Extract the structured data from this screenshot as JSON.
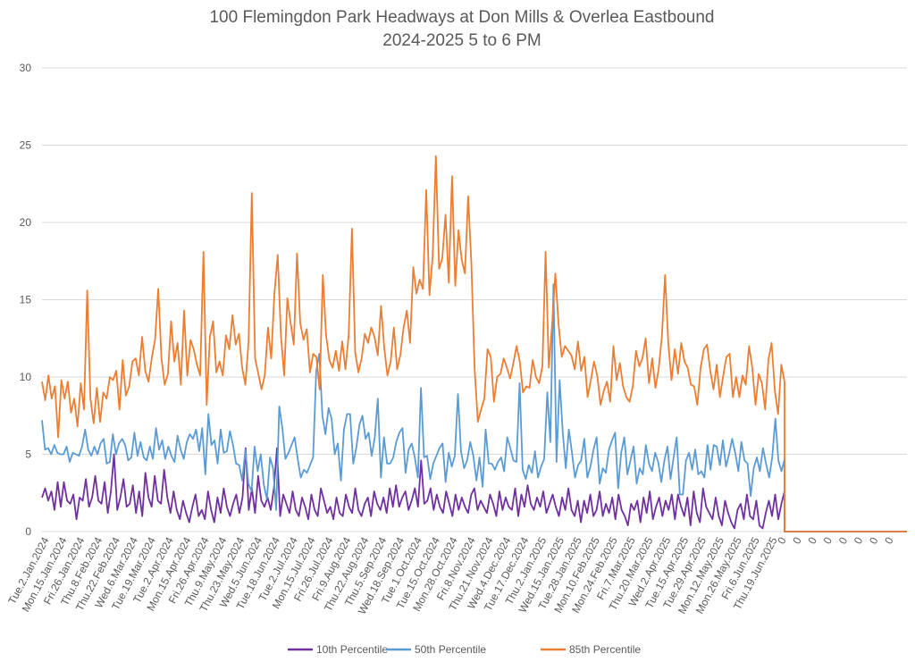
{
  "chart_data": {
    "type": "line",
    "title": [
      "100 Flemingdon Park Headways at Don Mills & Overlea Eastbound",
      "2024-2025 5 to 6 PM"
    ],
    "ylim": [
      0,
      30
    ],
    "yticks": [
      "0",
      "5",
      "10",
      "15",
      "20",
      "25",
      "30"
    ],
    "grid": "horizontal",
    "legend_position": "bottom",
    "x_labels": [
      "Tue.2.Jan.2024",
      "Mon.15.Jan.2024",
      "Fri.26.Jan.2024",
      "Thu.8.Feb.2024",
      "Thu.22.Feb.2024",
      "Wed.6.Mar.2024",
      "Tue.19.Mar.2024",
      "Tue.2.Apr.2024",
      "Mon.15.Apr.2024",
      "Fri.26.Apr.2024",
      "Thu.9.May.2024",
      "Thu.23.May.2024",
      "Wed.5.Jun.2024",
      "Tue.18.Jun.2024",
      "Tue.2.Jul.2024",
      "Mon.15.Jul.2024",
      "Fri.26.Jul.2024",
      "Fri.9.Aug.2024",
      "Thu.22.Aug.2024",
      "Thu.5.Sep.2024",
      "Wed.18.Sep.2024",
      "Tue.1.Oct.2024",
      "Tue.15.Oct.2024",
      "Mon.28.Oct.2024",
      "Fri.8.Nov.2024",
      "Thu.21.Nov.2024",
      "Wed.4.Dec.2024",
      "Tue.17.Dec.2024",
      "Thu.2.Jan.2025",
      "Wed.15.Jan.2025",
      "Tue.28.Jan.2025",
      "Mon.10.Feb.2025",
      "Mon.24.Feb.2025",
      "Fri.7.Mar.2025",
      "Thu.20.Mar.2025",
      "Wed.2.Apr.2025",
      "Tue.15.Apr.2025",
      "Tue.29.Apr.2025",
      "Mon.12.May.2025",
      "Mon.26.May.2025",
      "Fri.6.Jun.2025",
      "Thu.19.Jun.2025",
      "0",
      "0",
      "0",
      "0",
      "0",
      "0",
      "0",
      "0"
    ],
    "series": [
      {
        "name": "10th Percentile",
        "color": "#7030a0",
        "values": [
          2.2,
          2.8,
          2.0,
          2.6,
          1.4,
          3.2,
          1.6,
          3.2,
          2.0,
          1.8,
          2.4,
          0.8,
          2.2,
          2.0,
          3.4,
          1.6,
          2.2,
          3.6,
          2.0,
          1.8,
          3.2,
          1.2,
          2.6,
          5.0,
          1.4,
          2.2,
          3.4,
          1.6,
          1.8,
          3.0,
          1.2,
          2.6,
          1.0,
          3.8,
          2.2,
          1.6,
          3.6,
          2.0,
          1.8,
          4.0,
          2.2,
          1.2,
          2.6,
          1.4,
          0.8,
          2.0,
          1.2,
          0.6,
          1.6,
          2.4,
          1.0,
          1.4,
          0.8,
          2.6,
          1.4,
          0.6,
          2.2,
          1.2,
          2.8,
          1.6,
          1.0,
          1.8,
          2.4,
          1.2,
          2.2,
          5.4,
          1.4,
          2.8,
          1.2,
          3.6,
          2.0,
          1.6,
          2.2,
          1.4,
          2.8,
          5.4,
          1.0,
          2.4,
          1.8,
          1.2,
          2.6,
          1.4,
          1.0,
          2.2,
          1.6,
          0.8,
          2.4,
          1.4,
          1.0,
          2.8,
          2.0,
          1.2,
          1.6,
          0.8,
          2.2,
          1.2,
          1.0,
          2.4,
          1.6,
          1.2,
          2.8,
          1.4,
          1.0,
          1.8,
          2.2,
          1.0,
          2.6,
          1.8,
          1.4,
          2.2,
          1.2,
          2.8,
          1.6,
          3.0,
          1.6,
          2.2,
          2.6,
          1.4,
          2.0,
          2.8,
          1.6,
          4.6,
          1.8,
          2.0,
          2.8,
          1.4,
          2.4,
          1.6,
          1.2,
          2.6,
          1.8,
          1.0,
          2.4,
          1.4,
          2.2,
          1.6,
          1.2,
          2.4,
          2.8,
          1.4,
          2.0,
          1.6,
          1.2,
          2.4,
          1.8,
          1.0,
          2.6,
          1.4,
          2.2,
          1.6,
          1.4,
          2.8,
          1.0,
          2.4,
          1.6,
          3.0,
          1.8,
          1.4,
          2.2,
          1.6,
          2.6,
          1.2,
          1.8,
          2.4,
          1.6,
          1.0,
          2.2,
          1.4,
          2.8,
          1.4,
          1.0,
          2.0,
          0.6,
          2.0,
          1.2,
          2.4,
          1.0,
          1.4,
          2.6,
          1.0,
          1.8,
          1.2,
          2.2,
          0.8,
          2.4,
          1.4,
          1.0,
          0.4,
          1.8,
          1.4,
          2.0,
          0.6,
          2.2,
          1.2,
          2.6,
          0.8,
          1.6,
          2.2,
          1.0,
          2.0,
          1.4,
          2.4,
          0.8,
          2.4,
          1.6,
          1.0,
          2.2,
          0.4,
          2.6,
          1.2,
          0.6,
          2.8,
          1.6,
          1.2,
          0.8,
          2.2,
          1.0,
          0.4,
          2.0,
          1.2,
          0.6,
          0.2,
          1.4,
          1.8,
          0.8,
          2.4,
          1.0,
          0.8,
          2.0,
          0.4,
          0.2,
          1.2,
          2.0,
          1.0,
          2.4,
          0.8,
          1.8,
          2.6
        ]
      },
      {
        "name": "50th Percentile",
        "color": "#5b9bd5",
        "values": [
          7.2,
          5.3,
          5.4,
          5.0,
          5.6,
          5.1,
          5.0,
          5.0,
          5.5,
          4.5,
          5.1,
          5.0,
          4.9,
          5.5,
          6.6,
          5.3,
          4.9,
          5.5,
          5.0,
          5.7,
          6.0,
          4.4,
          4.5,
          6.3,
          5.0,
          5.7,
          6.0,
          5.6,
          4.6,
          4.8,
          6.4,
          4.9,
          5.8,
          4.8,
          4.6,
          5.5,
          4.7,
          6.7,
          5.3,
          5.9,
          4.7,
          5.5,
          4.9,
          4.5,
          6.2,
          5.3,
          4.7,
          5.8,
          6.3,
          6.0,
          6.6,
          5.2,
          6.7,
          3.7,
          7.6,
          5.6,
          5.9,
          4.4,
          6.6,
          5.1,
          5.2,
          6.5,
          5.6,
          4.4,
          4.3,
          3.3,
          5.3,
          3.1,
          2.6,
          5.5,
          3.9,
          5.0,
          3.0,
          2.1,
          4.8,
          4.1,
          1.4,
          8.1,
          6.7,
          4.7,
          5.1,
          5.6,
          6.1,
          4.7,
          3.5,
          4.0,
          3.8,
          4.3,
          4.8,
          10.4,
          11.5,
          7.5,
          6.3,
          8.0,
          7.3,
          5.0,
          5.7,
          3.3,
          6.6,
          7.6,
          7.6,
          4.4,
          5.4,
          6.9,
          7.5,
          6.0,
          6.4,
          4.9,
          6.1,
          8.6,
          3.5,
          6.1,
          4.4,
          4.4,
          4.8,
          5.8,
          6.4,
          6.7,
          3.8,
          5.3,
          5.7,
          4.8,
          3.5,
          9.3,
          4.8,
          4.9,
          3.4,
          4.4,
          4.9,
          5.4,
          5.7,
          3.2,
          5.1,
          4.2,
          4.9,
          8.9,
          5.2,
          4.1,
          4.6,
          5.8,
          4.9,
          3.3,
          4.8,
          2.9,
          6.6,
          4.4,
          4.4,
          4.0,
          4.5,
          4.8,
          3.9,
          6.1,
          5.4,
          4.6,
          4.5,
          9.6,
          4.0,
          3.4,
          4.3,
          3.8,
          5.2,
          3.5,
          4.2,
          4.7,
          9.0,
          5.8,
          16.0,
          4.5,
          9.8,
          6.5,
          4.1,
          6.6,
          5.1,
          3.5,
          4.3,
          4.6,
          6.0,
          3.5,
          4.2,
          5.3,
          6.1,
          3.1,
          4.1,
          3.8,
          5.3,
          5.9,
          6.4,
          2.8,
          5.1,
          6.1,
          3.7,
          4.6,
          5.5,
          3.1,
          4.1,
          3.7,
          5.6,
          4.4,
          3.9,
          5.1,
          4.5,
          3.2,
          4.6,
          5.5,
          3.4,
          4.8,
          6.1,
          2.4,
          2.4,
          4.6,
          5.1,
          4.0,
          5.3,
          3.7,
          3.9,
          3.5,
          5.6,
          4.0,
          5.6,
          5.5,
          4.3,
          5.9,
          4.2,
          5.0,
          6.0,
          5.1,
          3.9,
          5.8,
          4.6,
          4.4,
          2.3,
          4.1,
          4.8,
          3.9,
          5.4,
          4.4,
          3.5,
          4.8,
          7.3,
          4.6,
          3.9,
          4.7
        ]
      },
      {
        "name": "85th Percentile",
        "color": "#ed7d31",
        "values": [
          9.7,
          8.5,
          10.1,
          8.6,
          9.4,
          6.1,
          9.8,
          8.6,
          9.7,
          7.7,
          8.6,
          6.8,
          9.6,
          7.9,
          15.6,
          8.6,
          7.0,
          9.3,
          7.1,
          9.0,
          8.6,
          10.0,
          9.8,
          10.4,
          7.9,
          11.1,
          8.8,
          9.4,
          11.0,
          11.2,
          10.1,
          12.6,
          10.4,
          9.7,
          11.2,
          12.4,
          15.7,
          11.2,
          9.5,
          10.2,
          13.6,
          11.0,
          12.2,
          9.5,
          14.3,
          10.1,
          12.4,
          11.8,
          10.8,
          10.1,
          18.1,
          8.2,
          12.6,
          13.6,
          10.3,
          11.0,
          10.1,
          12.7,
          11.8,
          14.0,
          12.1,
          12.8,
          10.6,
          9.5,
          12.3,
          21.9,
          11.2,
          10.2,
          9.2,
          10.1,
          13.2,
          11.2,
          15.4,
          17.9,
          12.7,
          10.1,
          15.1,
          13.5,
          12.1,
          18.0,
          13.5,
          12.4,
          13.1,
          10.3,
          11.5,
          11.3,
          9.2,
          16.6,
          12.7,
          11.1,
          10.6,
          11.7,
          10.4,
          12.3,
          10.5,
          12.7,
          19.6,
          11.6,
          10.3,
          11.2,
          12.8,
          12.2,
          13.2,
          12.6,
          11.4,
          14.6,
          11.9,
          10.1,
          11.0,
          13.2,
          10.5,
          11.4,
          13.2,
          14.3,
          12.2,
          17.1,
          15.4,
          16.3,
          15.7,
          22.1,
          15.3,
          17.8,
          24.3,
          17.0,
          17.7,
          20.5,
          16.1,
          23.0,
          15.9,
          19.5,
          17.6,
          16.7,
          21.7,
          17.4,
          10.6,
          7.1,
          7.9,
          8.6,
          11.8,
          11.3,
          8.4,
          10.0,
          10.2,
          11.2,
          10.6,
          9.9,
          10.9,
          12.0,
          11.0,
          9.0,
          9.4,
          9.3,
          11.1,
          10.0,
          9.6,
          10.7,
          18.1,
          10.6,
          13.4,
          16.7,
          13.4,
          11.3,
          12.0,
          11.7,
          11.4,
          10.5,
          12.3,
          10.4,
          11.3,
          8.7,
          9.8,
          11.0,
          10.1,
          8.2,
          9.1,
          9.7,
          8.4,
          12.0,
          9.8,
          10.9,
          9.4,
          8.7,
          8.4,
          9.4,
          11.7,
          10.7,
          11.2,
          12.5,
          9.6,
          11.2,
          9.3,
          10.5,
          12.6,
          16.6,
          12.2,
          9.8,
          11.8,
          10.2,
          12.2,
          11.0,
          10.6,
          9.5,
          9.4,
          8.2,
          10.6,
          11.8,
          12.1,
          10.4,
          9.2,
          10.8,
          8.7,
          10.1,
          11.3,
          11.5,
          8.7,
          10.0,
          8.7,
          10.1,
          9.5,
          12.0,
          10.6,
          8.2,
          10.2,
          9.6,
          7.9,
          11.1,
          12.2,
          9.1,
          7.6,
          10.8,
          9.7
        ]
      }
    ]
  }
}
